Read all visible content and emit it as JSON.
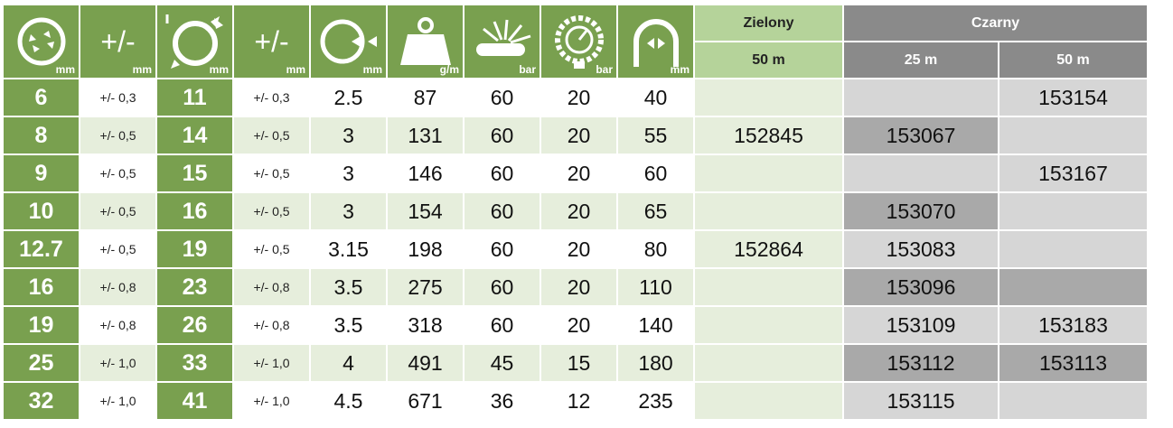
{
  "header": {
    "col1_unit": "mm",
    "col2_label": "+/-",
    "col2_unit": "mm",
    "col3_unit": "mm",
    "col4_label": "+/-",
    "col4_unit": "mm",
    "col5_unit": "mm",
    "col6_unit": "g/m",
    "col7_unit": "bar",
    "col8_unit": "bar",
    "col9_unit": "mm",
    "green_group": "Zielony",
    "black_group": "Czarny",
    "green_len": "50 m",
    "black_len1": "25 m",
    "black_len2": "50 m"
  },
  "icons": [
    "inner-diameter-icon",
    "outer-diameter-icon",
    "wall-thickness-icon",
    "weight-icon",
    "burst-pressure-icon",
    "working-pressure-gauge-icon",
    "bend-radius-icon"
  ],
  "colors": {
    "green": "#79a04f",
    "light_green": "#b5d39a",
    "grey": "#8a8a8a",
    "dark_cell": "#a9a9a9",
    "light_cell": "#d6d6d6"
  },
  "rows": [
    {
      "id": "6",
      "id_tol": "+/- 0,3",
      "od": "11",
      "od_tol": "+/- 0,3",
      "wall": "2.5",
      "weight": "87",
      "burst": "60",
      "work": "20",
      "bend": "40",
      "green50": "",
      "black25": "",
      "black50": "153154"
    },
    {
      "id": "8",
      "id_tol": "+/- 0,5",
      "od": "14",
      "od_tol": "+/- 0,5",
      "wall": "3",
      "weight": "131",
      "burst": "60",
      "work": "20",
      "bend": "55",
      "green50": "152845",
      "black25": "153067",
      "black50": ""
    },
    {
      "id": "9",
      "id_tol": "+/- 0,5",
      "od": "15",
      "od_tol": "+/- 0,5",
      "wall": "3",
      "weight": "146",
      "burst": "60",
      "work": "20",
      "bend": "60",
      "green50": "",
      "black25": "",
      "black50": "153167"
    },
    {
      "id": "10",
      "id_tol": "+/- 0,5",
      "od": "16",
      "od_tol": "+/- 0,5",
      "wall": "3",
      "weight": "154",
      "burst": "60",
      "work": "20",
      "bend": "65",
      "green50": "",
      "black25": "153070",
      "black50": ""
    },
    {
      "id": "12.7",
      "id_tol": "+/- 0,5",
      "od": "19",
      "od_tol": "+/- 0,5",
      "wall": "3.15",
      "weight": "198",
      "burst": "60",
      "work": "20",
      "bend": "80",
      "green50": "152864",
      "black25": "153083",
      "black50": ""
    },
    {
      "id": "16",
      "id_tol": "+/- 0,8",
      "od": "23",
      "od_tol": "+/- 0,8",
      "wall": "3.5",
      "weight": "275",
      "burst": "60",
      "work": "20",
      "bend": "110",
      "green50": "",
      "black25": "153096",
      "black50": ""
    },
    {
      "id": "19",
      "id_tol": "+/- 0,8",
      "od": "26",
      "od_tol": "+/- 0,8",
      "wall": "3.5",
      "weight": "318",
      "burst": "60",
      "work": "20",
      "bend": "140",
      "green50": "",
      "black25": "153109",
      "black50": "153183"
    },
    {
      "id": "25",
      "id_tol": "+/- 1,0",
      "od": "33",
      "od_tol": "+/- 1,0",
      "wall": "4",
      "weight": "491",
      "burst": "45",
      "work": "15",
      "bend": "180",
      "green50": "",
      "black25": "153112",
      "black50": "153113"
    },
    {
      "id": "32",
      "id_tol": "+/- 1,0",
      "od": "41",
      "od_tol": "+/- 1,0",
      "wall": "4.5",
      "weight": "671",
      "burst": "36",
      "work": "12",
      "bend": "235",
      "green50": "",
      "black25": "153115",
      "black50": ""
    }
  ]
}
